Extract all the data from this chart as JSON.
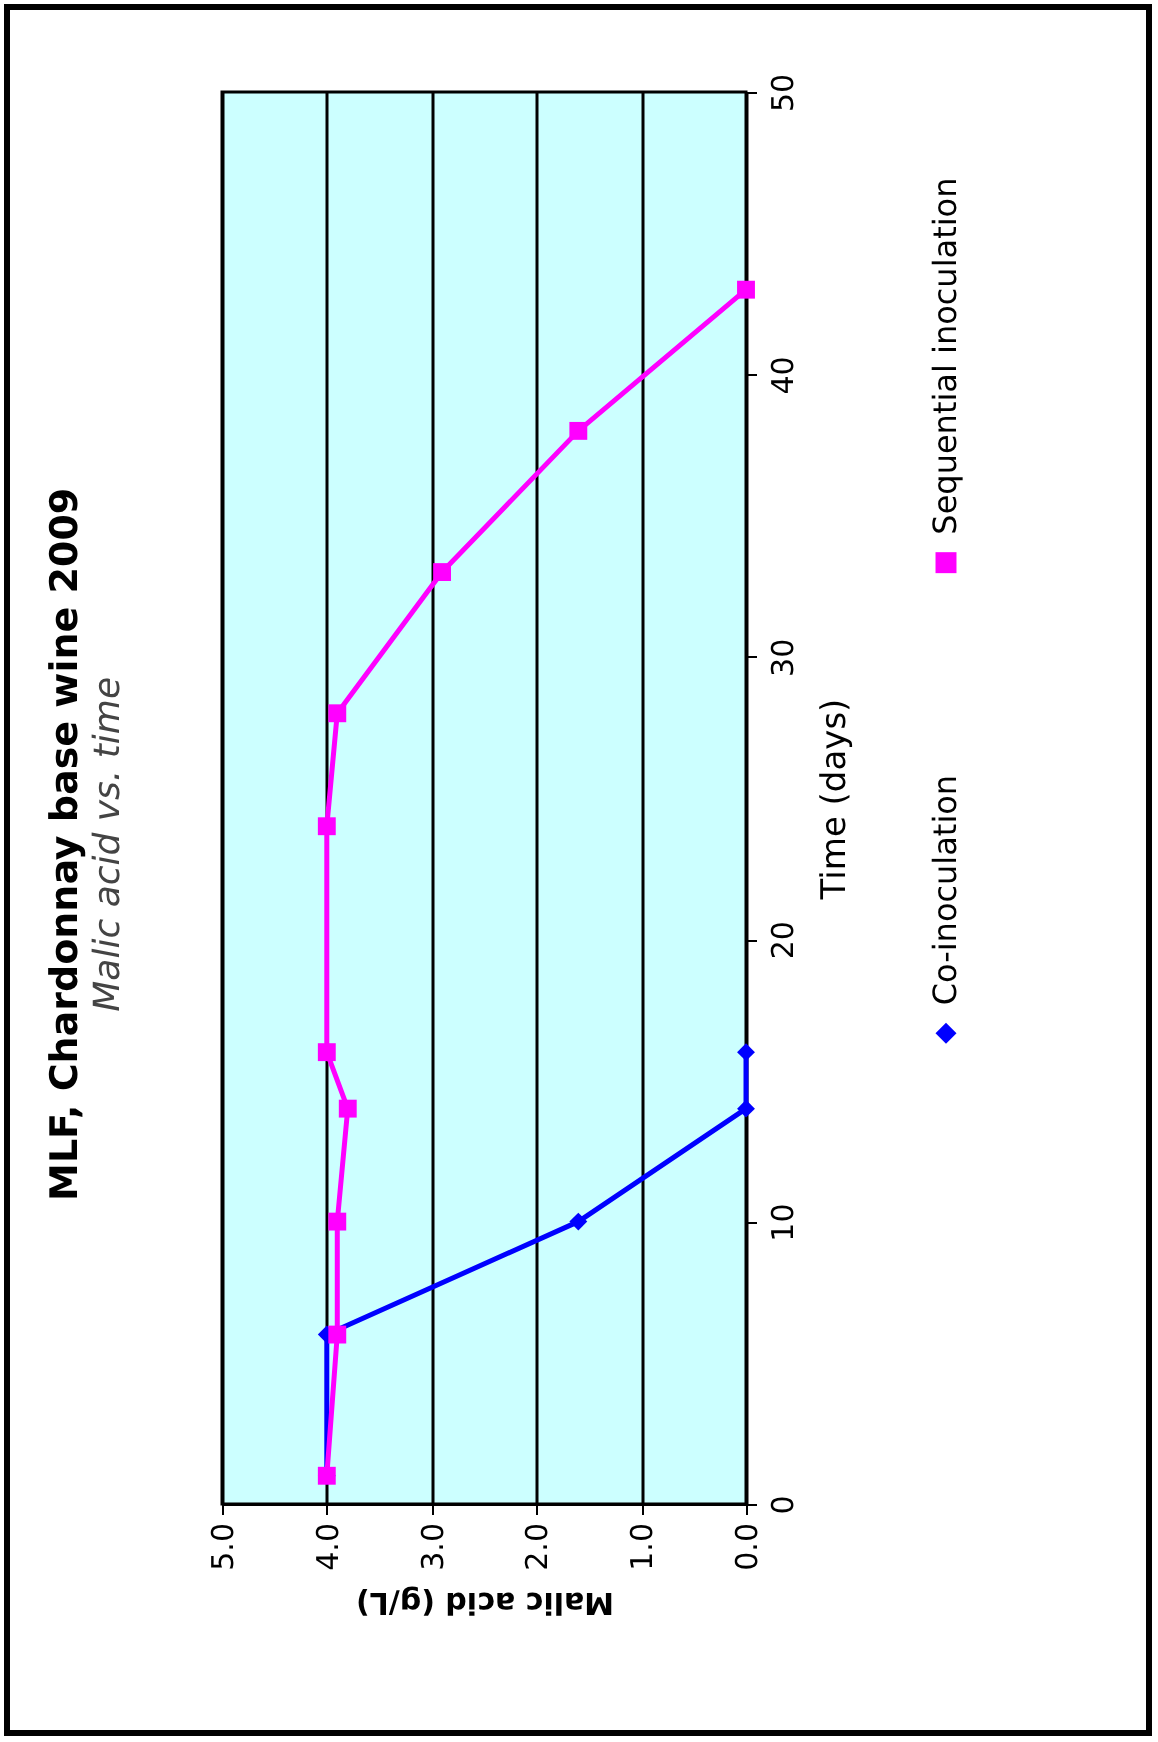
{
  "chart_data": {
    "type": "line",
    "title": "MLF, Chardonnay base wine 2009",
    "subtitle": "Malic acid vs. time",
    "xlabel": "Malic acid (g/L)",
    "ylabel": "Time (days)",
    "xlim": [
      5,
      0
    ],
    "xticks": [
      {
        "value": 5,
        "label": "5.0"
      },
      {
        "value": 4,
        "label": "4.0"
      },
      {
        "value": 3,
        "label": "3.0"
      },
      {
        "value": 2,
        "label": "2.0"
      },
      {
        "value": 1,
        "label": "1.0"
      },
      {
        "value": 0,
        "label": "0.0"
      }
    ],
    "ylim": [
      0,
      50
    ],
    "yticks": [
      0,
      10,
      20,
      30,
      40,
      50
    ],
    "grid": "x",
    "legend": "right",
    "series": [
      {
        "name": "Co-inoculation",
        "color": "#0000ff",
        "marker": "diamond",
        "x": [
          4.0,
          4.0,
          1.6,
          0.0,
          0.0
        ],
        "values": [
          1,
          6,
          10,
          14,
          16
        ]
      },
      {
        "name": "Sequential inoculation",
        "color": "#ff00ff",
        "marker": "square",
        "x": [
          4.0,
          3.9,
          3.9,
          3.8,
          4.0,
          4.0,
          3.9,
          2.9,
          1.6,
          0.0
        ],
        "values": [
          1,
          6,
          10,
          14,
          16,
          24,
          28,
          33,
          38,
          43
        ]
      }
    ]
  }
}
